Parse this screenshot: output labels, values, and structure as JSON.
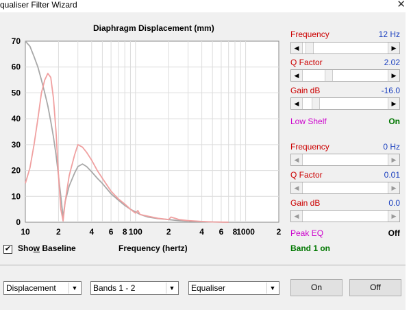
{
  "window": {
    "title": "qualiser Filter Wizard",
    "close_glyph": "✕"
  },
  "chart_data": {
    "type": "line",
    "title": "Diaphragm Displacement (mm)",
    "xlabel": "Frequency (hertz)",
    "ylabel": "",
    "xscale": "log",
    "xlim": [
      10,
      2000
    ],
    "ylim": [
      0,
      70
    ],
    "yticks": [
      "0",
      "10",
      "20",
      "30",
      "40",
      "50",
      "60",
      "70"
    ],
    "xticks": [
      {
        "v": 10,
        "t": "10"
      },
      {
        "v": 20,
        "t": "2"
      },
      {
        "v": 40,
        "t": "4"
      },
      {
        "v": 60,
        "t": "6"
      },
      {
        "v": 80,
        "t": "8"
      },
      {
        "v": 100,
        "t": "100"
      },
      {
        "v": 200,
        "t": "2"
      },
      {
        "v": 400,
        "t": "4"
      },
      {
        "v": 600,
        "t": "6"
      },
      {
        "v": 800,
        "t": "8"
      },
      {
        "v": 1000,
        "t": "1000"
      },
      {
        "v": 2000,
        "t": "2"
      }
    ],
    "grid": true,
    "series": [
      {
        "name": "",
        "color": "#f0a0a0",
        "x": [
          10,
          11,
          12,
          13,
          14,
          15,
          16,
          17,
          18,
          19,
          20,
          21,
          22,
          23,
          25,
          28,
          30,
          33,
          36,
          40,
          45,
          50,
          60,
          70,
          80,
          90,
          100,
          105,
          110,
          130,
          160,
          200,
          210,
          250,
          300,
          400,
          500,
          700
        ],
        "y": [
          15,
          21,
          30,
          40,
          50,
          55,
          57.5,
          56,
          48,
          35,
          18,
          5,
          0.5,
          8,
          18,
          26,
          30,
          29,
          27,
          24,
          20,
          17,
          12,
          9,
          7,
          5,
          3.5,
          4.5,
          3,
          2.3,
          1.5,
          1,
          2,
          1,
          0.6,
          0.3,
          0.1,
          0
        ]
      },
      {
        "name": "",
        "color": "#a8a8a8",
        "x": [
          10,
          11,
          12,
          13,
          14,
          15,
          16,
          17,
          18,
          19,
          20,
          21,
          22,
          23,
          25,
          28,
          30,
          33,
          36,
          40,
          45,
          50,
          60,
          70,
          80,
          90,
          100,
          110,
          130,
          160,
          200,
          250,
          300,
          400,
          500,
          700
        ],
        "y": [
          70,
          68,
          64,
          60,
          55,
          50,
          45,
          39,
          33,
          26,
          18,
          10,
          2,
          8,
          14,
          19,
          21.5,
          22.5,
          21.5,
          19.5,
          17,
          15,
          11,
          8.5,
          6.5,
          5,
          4,
          3,
          2,
          1.4,
          1,
          0.6,
          0.4,
          0.2,
          0.1,
          0
        ]
      }
    ]
  },
  "baseline": {
    "checked_glyph": "✔",
    "label_pre": "Sho",
    "label_u": "w",
    "label_post": " Baseline"
  },
  "band1": {
    "freq_label": "Frequency",
    "freq_value": "12 Hz",
    "freq_level": 0.04,
    "q_label": "Q Factor",
    "q_value": "2.02",
    "q_level": 0.28,
    "gain_label": "Gain  dB",
    "gain_value": "-16.0",
    "gain_level": 0.12,
    "mode_label": "Low Shelf",
    "mode_state": "On"
  },
  "band2": {
    "freq_label": "Frequency",
    "freq_value": "0 Hz",
    "freq_level": 0,
    "q_label": "Q Factor",
    "q_value": "0.01",
    "q_level": 0,
    "gain_label": "Gain  dB",
    "gain_value": "0.0",
    "gain_level": 0,
    "mode_label": "Peak EQ",
    "mode_state": "Off"
  },
  "band_status": "Band 1 on",
  "controls": {
    "view_select": "Displacement",
    "bands_select": "Bands 1 - 2",
    "type_select": "Equaliser",
    "on_label": "On",
    "off_label": "Off"
  },
  "icons": {
    "left_arrow": "◀",
    "right_arrow": "▶",
    "dropdown": "▼"
  }
}
